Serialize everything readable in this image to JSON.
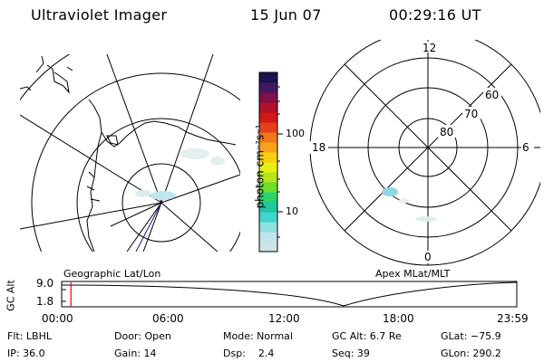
{
  "header": {
    "instrument": "Ultraviolet Imager",
    "date": "15 Jun 07",
    "time": "00:29:16 UT"
  },
  "colorbar": {
    "unit_label": "photon cm⁻²s⁻¹",
    "tick_labels": [
      "100",
      "10"
    ],
    "colors": [
      "#cfe3e8",
      "#bfe6ea",
      "#8fe0e0",
      "#3fd6d0",
      "#22c6a0",
      "#2bd36a",
      "#6fdc2a",
      "#b5e61c",
      "#e8ee16",
      "#f6d010",
      "#f6a21a",
      "#f07818",
      "#e64020",
      "#d41818",
      "#b0102a",
      "#80104a",
      "#401860",
      "#1a1250"
    ]
  },
  "left_panel": {
    "label": "Geographic Lat/Lon"
  },
  "right_panel": {
    "label": "Apex  MLat/MLT",
    "mlt_labels": {
      "top": "12",
      "bottom": "0",
      "left": "18",
      "right": "6"
    },
    "lat_labels": [
      "80",
      "70",
      "60"
    ]
  },
  "altitude_strip": {
    "axis_label": "GC Alt",
    "y_ticks": [
      "9.0",
      "1.8"
    ],
    "x_ticks": [
      "00:00",
      "06:00",
      "12:00",
      "18:00",
      "23:59"
    ],
    "current_time_marker_hour": 0.49,
    "marker_color": "#ff0000"
  },
  "status": {
    "row1": [
      "Flt: LBHL",
      "Door: Open",
      "Mode: Normal",
      "GC Alt: 6.7 Re",
      "GLat: −75.9"
    ],
    "row2": [
      "IP: 36.0",
      "Gain: 14",
      "Dsp:    2.4",
      "Seq: 39",
      "GLon: 290.2"
    ]
  }
}
